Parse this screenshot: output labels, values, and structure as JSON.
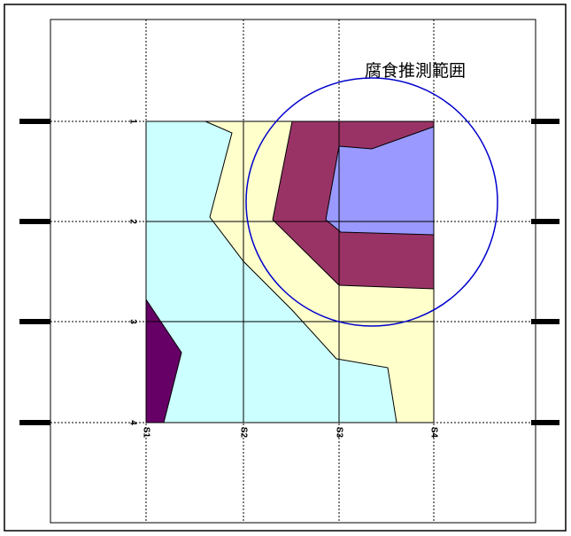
{
  "annotation": "腐食推測範囲",
  "rows": [
    "1",
    "2",
    "3",
    "4"
  ],
  "columns": [
    "S1",
    "S2",
    "S3",
    "S4"
  ]
}
